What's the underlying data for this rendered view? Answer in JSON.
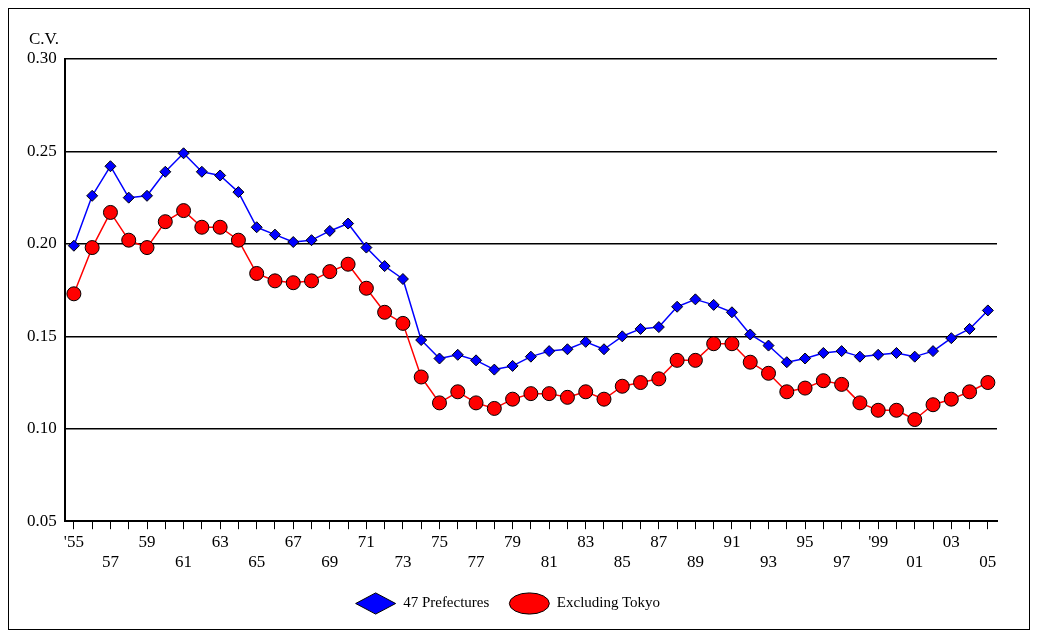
{
  "chart_data": {
    "type": "line",
    "ylabel": "C.V.",
    "categories": [
      "'55",
      null,
      "57",
      null,
      "59",
      null,
      "61",
      null,
      "63",
      null,
      "65",
      null,
      "67",
      null,
      "69",
      null,
      "71",
      null,
      "73",
      null,
      "75",
      null,
      "77",
      null,
      "79",
      null,
      "81",
      null,
      "83",
      null,
      "85",
      null,
      "87",
      null,
      "89",
      null,
      "91",
      null,
      "93",
      null,
      "95",
      null,
      "97",
      null,
      "'99",
      null,
      "01",
      null,
      "03",
      null,
      "05"
    ],
    "series": [
      {
        "name": "47 Prefectures",
        "color": "#0000ff",
        "marker": "diamond",
        "values": [
          0.199,
          0.226,
          0.242,
          0.225,
          0.226,
          0.239,
          0.249,
          0.239,
          0.237,
          0.228,
          0.209,
          0.205,
          0.201,
          0.202,
          0.207,
          0.211,
          0.198,
          0.188,
          0.181,
          0.148,
          0.138,
          0.14,
          0.137,
          0.132,
          0.134,
          0.139,
          0.142,
          0.143,
          0.147,
          0.143,
          0.15,
          0.154,
          0.155,
          0.166,
          0.17,
          0.167,
          0.163,
          0.151,
          0.145,
          0.136,
          0.138,
          0.141,
          0.142,
          0.139,
          0.14,
          0.141,
          0.139,
          0.142,
          0.149,
          0.154,
          0.164
        ]
      },
      {
        "name": "Excluding Tokyo",
        "color": "#ff0000",
        "marker": "circle",
        "values": [
          0.173,
          0.198,
          0.217,
          0.202,
          0.198,
          0.212,
          0.218,
          0.209,
          0.209,
          0.202,
          0.184,
          0.18,
          0.179,
          0.18,
          0.185,
          0.189,
          0.176,
          0.163,
          0.157,
          0.128,
          0.114,
          0.12,
          0.114,
          0.111,
          0.116,
          0.119,
          0.119,
          0.117,
          0.12,
          0.116,
          0.123,
          0.125,
          0.127,
          0.137,
          0.137,
          0.146,
          0.146,
          0.136,
          0.13,
          0.12,
          0.122,
          0.126,
          0.124,
          0.114,
          0.11,
          0.11,
          0.105,
          0.113,
          0.116,
          0.12,
          0.125
        ]
      }
    ],
    "ylim": [
      0.05,
      0.3
    ],
    "yticks": [
      {
        "value": 0.05,
        "label": "0.05"
      },
      {
        "value": 0.1,
        "label": "0.10"
      },
      {
        "value": 0.15,
        "label": "0.15"
      },
      {
        "value": 0.2,
        "label": "0.20"
      },
      {
        "value": 0.25,
        "label": "0.25"
      },
      {
        "value": 0.3,
        "label": "0.30"
      }
    ],
    "grid": "y",
    "legend": "bottom"
  }
}
